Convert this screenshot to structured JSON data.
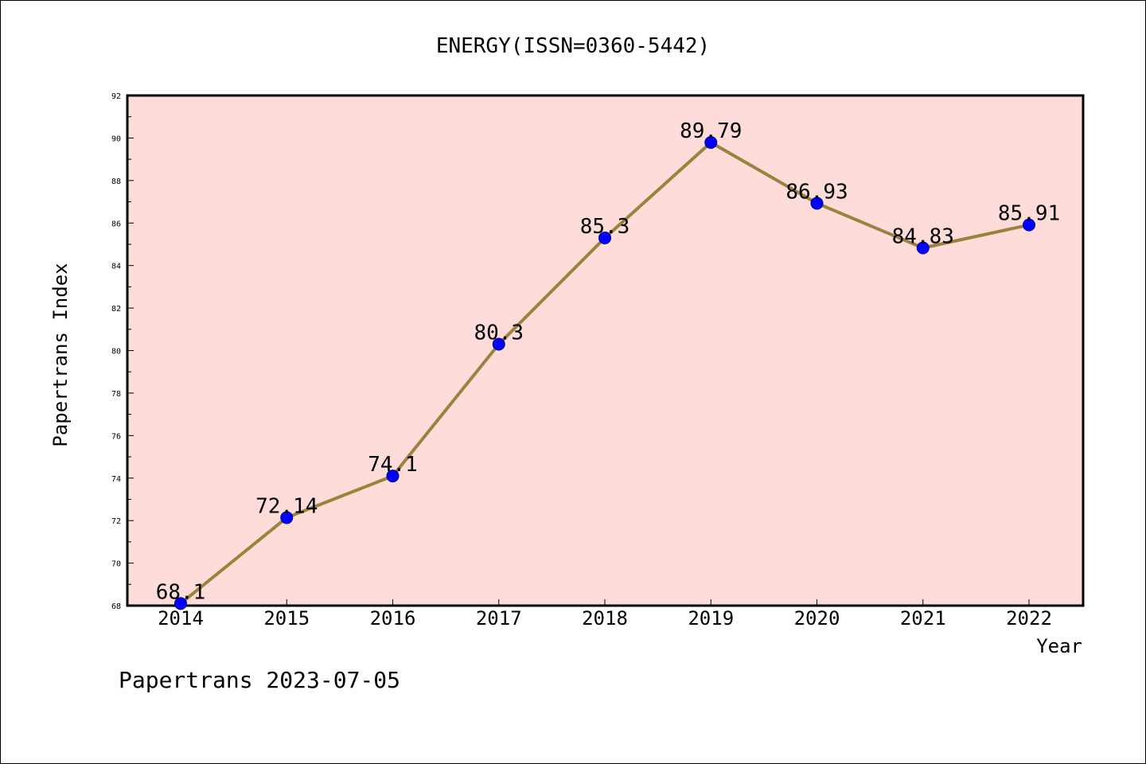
{
  "chart_data": {
    "type": "line",
    "title": "ENERGY(ISSN=0360-5442)",
    "xlabel": "Year",
    "ylabel": "Papertrans Index",
    "categories": [
      "2014",
      "2015",
      "2016",
      "2017",
      "2018",
      "2019",
      "2020",
      "2021",
      "2022"
    ],
    "values": [
      68.1,
      72.14,
      74.1,
      80.3,
      85.3,
      89.79,
      86.93,
      84.83,
      85.91
    ],
    "data_labels": [
      "68.1",
      "72.14",
      "74.1",
      "80.3",
      "85.3",
      "89.79",
      "86.93",
      "84.83",
      "85.91"
    ],
    "ylim": [
      68,
      92
    ],
    "yticks": [
      "68",
      "70",
      "72",
      "74",
      "76",
      "78",
      "80",
      "82",
      "84",
      "86",
      "88",
      "90",
      "92"
    ],
    "grid": false,
    "colors": {
      "plot_background": "#fddcda",
      "line": "#9a833b",
      "marker": "#0000ff"
    }
  },
  "footer": "Papertrans 2023-07-05"
}
